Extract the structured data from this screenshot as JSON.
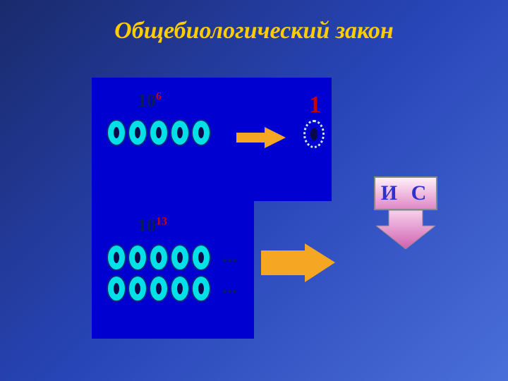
{
  "title": {
    "text": "Общебиологический закон",
    "color": "#ffcc00"
  },
  "panel": {
    "background": "#0000d0"
  },
  "upper": {
    "base": "10",
    "exp": "6",
    "label_color": "#0a1a5a",
    "exp_color": "#cc0000",
    "cell_count": 5,
    "cell_fill": "#00e0e8",
    "cell_border": "#0a2a7a",
    "nucleus_color": "#0a0a4a"
  },
  "lower": {
    "base": "10",
    "exp": "13",
    "label_color": "#0a1a5a",
    "exp_color": "#cc0000",
    "row1_count": 5,
    "row2_count": 5,
    "cell_fill": "#00e0e8",
    "cell_border": "#0a2a7a",
    "ellipsis1": "...",
    "ellipsis2": "...",
    "ellipsis_color": "#0a1a5a"
  },
  "arrows": {
    "small_color": "#f5a623",
    "big_color": "#f5a623"
  },
  "target": {
    "one_label": "1",
    "one_color": "#cc0000",
    "cell_border": "#cfe8ff"
  },
  "ic": {
    "text": "И С",
    "text_color": "#3030cc",
    "bg_gradient_top": "#fff0f8",
    "bg_gradient_bottom": "#e088c8",
    "arrow_top": "#f8d0ec",
    "arrow_bottom": "#d060b0"
  }
}
